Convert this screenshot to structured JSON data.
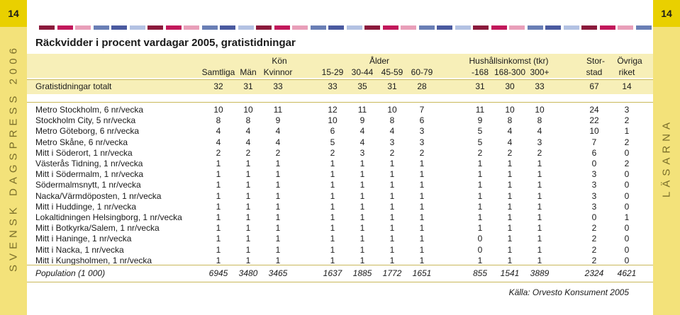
{
  "page_number": "14",
  "side_left_text": "SVENSK DAGSPRESS 2006",
  "side_right_text": "LÄSARNA",
  "deco_colors": [
    "#8b1a3c",
    "#c2185b",
    "#e89fb9",
    "#6a7fb5",
    "#4a5aa0",
    "#b3c2e3",
    "#8b1a3c",
    "#c2185b",
    "#e89fb9",
    "#6a7fb5",
    "#4a5aa0",
    "#b3c2e3",
    "#8b1a3c",
    "#c2185b",
    "#e89fb9",
    "#6a7fb5",
    "#4a5aa0",
    "#b3c2e3",
    "#8b1a3c",
    "#c2185b",
    "#e89fb9",
    "#6a7fb5",
    "#4a5aa0",
    "#b3c2e3",
    "#8b1a3c",
    "#c2185b",
    "#e89fb9",
    "#6a7fb5",
    "#4a5aa0",
    "#b3c2e3",
    "#8b1a3c",
    "#c2185b",
    "#e89fb9",
    "#6a7fb5"
  ],
  "title": "Räckvidder i procent vardagar 2005, gratistidningar",
  "group_headers": {
    "kon": "Kön",
    "alder": "Ålder",
    "hushall": "Hushållsinkomst (tkr)",
    "stor": "Stor-",
    "ovriga": "Övriga"
  },
  "columns": [
    "Samtliga",
    "Män",
    "Kvinnor",
    "15-29",
    "30-44",
    "45-59",
    "60-79",
    "-168",
    "168-300",
    "300+",
    "stad",
    "riket"
  ],
  "rows": [
    {
      "label": "Gratistidningar totalt",
      "values": [
        "32",
        "31",
        "33",
        "33",
        "35",
        "31",
        "28",
        "31",
        "30",
        "33",
        "67",
        "14"
      ]
    },
    {
      "label": "Metro Stockholm, 6 nr/vecka",
      "values": [
        "10",
        "10",
        "11",
        "12",
        "11",
        "10",
        "7",
        "11",
        "10",
        "10",
        "24",
        "3"
      ]
    },
    {
      "label": "Stockholm City, 5 nr/vecka",
      "values": [
        "8",
        "8",
        "9",
        "10",
        "9",
        "8",
        "6",
        "9",
        "8",
        "8",
        "22",
        "2"
      ]
    },
    {
      "label": "Metro Göteborg, 6 nr/vecka",
      "values": [
        "4",
        "4",
        "4",
        "6",
        "4",
        "4",
        "3",
        "5",
        "4",
        "4",
        "10",
        "1"
      ]
    },
    {
      "label": "Metro Skåne, 6 nr/vecka",
      "values": [
        "4",
        "4",
        "4",
        "5",
        "4",
        "3",
        "3",
        "5",
        "4",
        "3",
        "7",
        "2"
      ]
    },
    {
      "label": "Mitt i Söderort, 1 nr/vecka",
      "values": [
        "2",
        "2",
        "2",
        "2",
        "3",
        "2",
        "2",
        "2",
        "2",
        "2",
        "6",
        "0"
      ]
    },
    {
      "label": "Västerås Tidning, 1 nr/vecka",
      "values": [
        "1",
        "1",
        "1",
        "1",
        "1",
        "1",
        "1",
        "1",
        "1",
        "1",
        "0",
        "2"
      ]
    },
    {
      "label": "Mitt i Södermalm, 1 nr/vecka",
      "values": [
        "1",
        "1",
        "1",
        "1",
        "1",
        "1",
        "1",
        "1",
        "1",
        "1",
        "3",
        "0"
      ]
    },
    {
      "label": "Södermalmsnytt, 1 nr/vecka",
      "values": [
        "1",
        "1",
        "1",
        "1",
        "1",
        "1",
        "1",
        "1",
        "1",
        "1",
        "3",
        "0"
      ]
    },
    {
      "label": "Nacka/Värmdöposten, 1 nr/vecka",
      "values": [
        "1",
        "1",
        "1",
        "1",
        "1",
        "1",
        "1",
        "1",
        "1",
        "1",
        "3",
        "0"
      ]
    },
    {
      "label": "Mitt i Huddinge, 1 nr/vecka",
      "values": [
        "1",
        "1",
        "1",
        "1",
        "1",
        "1",
        "1",
        "1",
        "1",
        "1",
        "3",
        "0"
      ]
    },
    {
      "label": "Lokaltidningen Helsingborg, 1 nr/vecka",
      "values": [
        "1",
        "1",
        "1",
        "1",
        "1",
        "1",
        "1",
        "1",
        "1",
        "1",
        "0",
        "1"
      ]
    },
    {
      "label": "Mitt i Botkyrka/Salem, 1 nr/vecka",
      "values": [
        "1",
        "1",
        "1",
        "1",
        "1",
        "1",
        "1",
        "1",
        "1",
        "1",
        "2",
        "0"
      ]
    },
    {
      "label": "Mitt i Haninge, 1 nr/vecka",
      "values": [
        "1",
        "1",
        "1",
        "1",
        "1",
        "1",
        "1",
        "0",
        "1",
        "1",
        "2",
        "0"
      ]
    },
    {
      "label": "Mitt i Nacka, 1 nr/vecka",
      "values": [
        "1",
        "1",
        "1",
        "1",
        "1",
        "1",
        "1",
        "0",
        "1",
        "1",
        "2",
        "0"
      ]
    },
    {
      "label": "Mitt i Kungsholmen, 1 nr/vecka",
      "values": [
        "1",
        "1",
        "1",
        "1",
        "1",
        "1",
        "1",
        "1",
        "1",
        "1",
        "2",
        "0"
      ]
    }
  ],
  "population": {
    "label": "Population (1 000)",
    "values": [
      "6945",
      "3480",
      "3465",
      "1637",
      "1885",
      "1772",
      "1651",
      "855",
      "1541",
      "3889",
      "2324",
      "4621"
    ]
  },
  "source": "Källa: Orvesto Konsument 2005",
  "colors": {
    "side": "#f3e27a",
    "page_box": "#e9d000",
    "band": "#f7efb8",
    "rule": "#c9b85a"
  }
}
